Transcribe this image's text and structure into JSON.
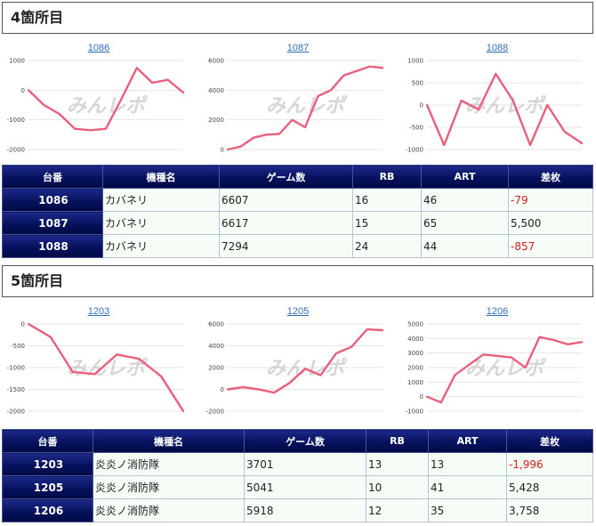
{
  "sections": [
    {
      "title": "4箇所目",
      "charts": [
        {
          "unit": "1086",
          "ticks": [
            "1000",
            "0",
            "-1000",
            "-2000"
          ],
          "tick_values": [
            1000,
            0,
            -1000,
            -2000
          ],
          "ylim": [
            -2000,
            1000
          ],
          "values": [
            0,
            -500,
            -800,
            -1300,
            -1350,
            -1300,
            -300,
            750,
            250,
            350,
            -79
          ]
        },
        {
          "unit": "1087",
          "ticks": [
            "6000",
            "4000",
            "2000",
            "0"
          ],
          "tick_values": [
            6000,
            4000,
            2000,
            0
          ],
          "ylim": [
            0,
            6000
          ],
          "values": [
            0,
            200,
            800,
            1000,
            1050,
            2000,
            1500,
            3600,
            4000,
            5000,
            5300,
            5600,
            5500
          ]
        },
        {
          "unit": "1088",
          "ticks": [
            "1000",
            "500",
            "0",
            "-500",
            "-1000"
          ],
          "tick_values": [
            1000,
            500,
            0,
            -500,
            -1000
          ],
          "ylim": [
            -1000,
            1000
          ],
          "values": [
            0,
            -900,
            100,
            -100,
            700,
            100,
            -900,
            0,
            -600,
            -857
          ]
        }
      ],
      "table": {
        "headers": [
          "台番",
          "機種名",
          "ゲーム数",
          "RB",
          "ART",
          "差枚"
        ],
        "rows": [
          {
            "unit": "1086",
            "machine": "カバネリ",
            "games": "6607",
            "rb": "16",
            "art": "46",
            "diff": "-79",
            "negative": true
          },
          {
            "unit": "1087",
            "machine": "カバネリ",
            "games": "6617",
            "rb": "15",
            "art": "65",
            "diff": "5,500",
            "negative": false
          },
          {
            "unit": "1088",
            "machine": "カバネリ",
            "games": "7294",
            "rb": "24",
            "art": "44",
            "diff": "-857",
            "negative": true
          }
        ]
      }
    },
    {
      "title": "5箇所目",
      "charts": [
        {
          "unit": "1203",
          "ticks": [
            "0",
            "-500",
            "-1000",
            "-1500",
            "-2000"
          ],
          "tick_values": [
            0,
            -500,
            -1000,
            -1500,
            -2000
          ],
          "ylim": [
            -2000,
            0
          ],
          "values": [
            0,
            -300,
            -1100,
            -1150,
            -700,
            -800,
            -1200,
            -1996
          ]
        },
        {
          "unit": "1205",
          "ticks": [
            "6000",
            "4000",
            "2000",
            "0",
            "-2000"
          ],
          "tick_values": [
            6000,
            4000,
            2000,
            0,
            -2000
          ],
          "ylim": [
            -2000,
            6000
          ],
          "values": [
            0,
            200,
            0,
            -300,
            600,
            1900,
            1300,
            3300,
            3900,
            5500,
            5428
          ]
        },
        {
          "unit": "1206",
          "ticks": [
            "5000",
            "4000",
            "3000",
            "2000",
            "1000",
            "0",
            "-1000"
          ],
          "tick_values": [
            5000,
            4000,
            3000,
            2000,
            1000,
            0,
            -1000
          ],
          "ylim": [
            -1000,
            5000
          ],
          "values": [
            0,
            -400,
            1500,
            2200,
            2900,
            2800,
            2700,
            2000,
            4100,
            3900,
            3600,
            3758
          ]
        }
      ],
      "table": {
        "headers": [
          "台番",
          "機種名",
          "ゲーム数",
          "RB",
          "ART",
          "差枚"
        ],
        "rows": [
          {
            "unit": "1203",
            "machine": "炎炎ノ消防隊",
            "games": "3701",
            "rb": "13",
            "art": "13",
            "diff": "-1,996",
            "negative": true
          },
          {
            "unit": "1205",
            "machine": "炎炎ノ消防隊",
            "games": "5041",
            "rb": "10",
            "art": "41",
            "diff": "5,428",
            "negative": false
          },
          {
            "unit": "1206",
            "machine": "炎炎ノ消防隊",
            "games": "5918",
            "rb": "12",
            "art": "35",
            "diff": "3,758",
            "negative": false
          }
        ]
      }
    }
  ],
  "watermark": "みんレポ",
  "colors": {
    "line": "#e8607c",
    "header_bg": "#06115c",
    "negative": "#d81c1c",
    "cell_bg": "#f6fcf6"
  },
  "chart_data": [
    {
      "type": "line",
      "title": "1086",
      "x": [
        1,
        2,
        3,
        4,
        5,
        6,
        7,
        8,
        9,
        10,
        11
      ],
      "series": [
        {
          "values": [
            0,
            -500,
            -800,
            -1300,
            -1350,
            -1300,
            -300,
            750,
            250,
            350,
            -79
          ]
        }
      ],
      "ylim": [
        -2000,
        1000
      ],
      "grid": true
    },
    {
      "type": "line",
      "title": "1087",
      "x": [
        1,
        2,
        3,
        4,
        5,
        6,
        7,
        8,
        9,
        10,
        11,
        12,
        13
      ],
      "series": [
        {
          "values": [
            0,
            200,
            800,
            1000,
            1050,
            2000,
            1500,
            3600,
            4000,
            5000,
            5300,
            5600,
            5500
          ]
        }
      ],
      "ylim": [
        0,
        6000
      ],
      "grid": true
    },
    {
      "type": "line",
      "title": "1088",
      "x": [
        1,
        2,
        3,
        4,
        5,
        6,
        7,
        8,
        9,
        10
      ],
      "series": [
        {
          "values": [
            0,
            -900,
            100,
            -100,
            700,
            100,
            -900,
            0,
            -600,
            -857
          ]
        }
      ],
      "ylim": [
        -1000,
        1000
      ],
      "grid": true
    },
    {
      "type": "line",
      "title": "1203",
      "x": [
        1,
        2,
        3,
        4,
        5,
        6,
        7,
        8
      ],
      "series": [
        {
          "values": [
            0,
            -300,
            -1100,
            -1150,
            -700,
            -800,
            -1200,
            -1996
          ]
        }
      ],
      "ylim": [
        -2000,
        0
      ],
      "grid": true
    },
    {
      "type": "line",
      "title": "1205",
      "x": [
        1,
        2,
        3,
        4,
        5,
        6,
        7,
        8,
        9,
        10,
        11
      ],
      "series": [
        {
          "values": [
            0,
            200,
            0,
            -300,
            600,
            1900,
            1300,
            3300,
            3900,
            5500,
            5428
          ]
        }
      ],
      "ylim": [
        -2000,
        6000
      ],
      "grid": true
    },
    {
      "type": "line",
      "title": "1206",
      "x": [
        1,
        2,
        3,
        4,
        5,
        6,
        7,
        8,
        9,
        10,
        11,
        12
      ],
      "series": [
        {
          "values": [
            0,
            -400,
            1500,
            2200,
            2900,
            2800,
            2700,
            2000,
            4100,
            3900,
            3600,
            3758
          ]
        }
      ],
      "ylim": [
        -1000,
        5000
      ],
      "grid": true
    }
  ]
}
